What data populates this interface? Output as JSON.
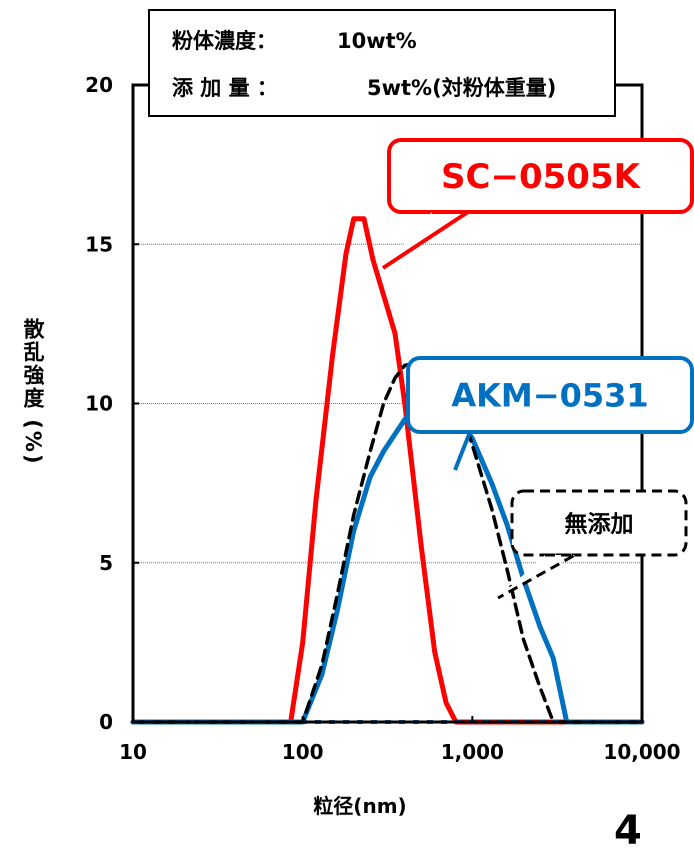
{
  "chart_data": {
    "type": "line",
    "xscale": "log",
    "xlim": [
      10,
      10000
    ],
    "ylim": [
      0,
      20
    ],
    "xticks": [
      10,
      100,
      1000,
      10000
    ],
    "xtick_labels": [
      "10",
      "100",
      "1,000",
      "10,000"
    ],
    "yticks": [
      0,
      5,
      10,
      15,
      20
    ],
    "ytick_labels": [
      "0",
      "5",
      "10",
      "15",
      "20"
    ],
    "xlabel": "粒径(nm)",
    "ylabel": "散乱強度 (%)",
    "grid": "horizontal",
    "info_box": {
      "line1_label": "粉体濃度：",
      "line1_value": "10wt%",
      "line2_label": "添 加 量 ：",
      "line2_value": "5wt%(対粉体重量)"
    },
    "series": [
      {
        "name": "SC−0505K",
        "color": "#ff0000",
        "style": "solid",
        "x": [
          10,
          85,
          100,
          120,
          150,
          180,
          200,
          230,
          260,
          300,
          350,
          400,
          500,
          600,
          700,
          800,
          900,
          10000
        ],
        "y": [
          0,
          0,
          2.5,
          7,
          11.5,
          14.7,
          15.8,
          15.8,
          14.5,
          13.4,
          12.2,
          10,
          5.5,
          2.2,
          0.6,
          0,
          0,
          0
        ]
      },
      {
        "name": "AKM−0531",
        "color": "#0070c0",
        "style": "solid",
        "x": [
          10,
          100,
          130,
          160,
          200,
          250,
          300,
          400,
          500,
          600,
          700,
          800,
          1000,
          1300,
          1600,
          2000,
          2500,
          3000,
          3600,
          10000
        ],
        "y": [
          0,
          0,
          1.5,
          3.5,
          6,
          7.7,
          8.5,
          9.5,
          10,
          10.1,
          10,
          9.7,
          8.9,
          7.5,
          6.2,
          4.5,
          3,
          2,
          0,
          0
        ]
      },
      {
        "name": "無添加",
        "color": "#000000",
        "style": "dashed",
        "x": [
          10,
          100,
          130,
          160,
          200,
          250,
          300,
          350,
          400,
          500,
          600,
          700,
          800,
          1000,
          1300,
          1600,
          2000,
          2500,
          3000,
          10000
        ],
        "y": [
          0,
          0,
          1.8,
          4,
          6.5,
          8.5,
          10,
          10.8,
          11.2,
          11.3,
          11.2,
          10.9,
          10.3,
          8.7,
          6.7,
          4.8,
          2.6,
          1.1,
          0,
          0
        ]
      }
    ],
    "callouts": [
      {
        "text": "SC−0505K",
        "color": "#ff0000"
      },
      {
        "text": "AKM−0531",
        "color": "#0070c0"
      },
      {
        "text": "無添加",
        "color": "#000000"
      }
    ]
  },
  "page_number": "4"
}
